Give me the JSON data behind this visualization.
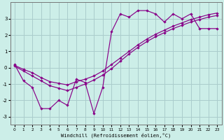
{
  "xlabel": "Windchill (Refroidissement éolien,°C)",
  "bg_color": "#cceee8",
  "grid_color": "#aacccc",
  "line_color": "#880088",
  "y_jagged": [
    0.2,
    -0.8,
    -1.2,
    -2.5,
    -2.5,
    -2.0,
    -2.3,
    -0.7,
    -0.9,
    -2.8,
    -1.2,
    2.2,
    3.3,
    3.1,
    3.5,
    3.5,
    3.3,
    2.8,
    3.3,
    3.0,
    3.3,
    2.4,
    2.4,
    2.4
  ],
  "y_diag1": [
    0.15,
    -0.1,
    -0.3,
    -0.6,
    -0.85,
    -0.95,
    -1.05,
    -0.85,
    -0.7,
    -0.5,
    -0.2,
    0.2,
    0.6,
    1.0,
    1.4,
    1.75,
    2.05,
    2.3,
    2.55,
    2.75,
    2.95,
    3.1,
    3.25,
    3.35
  ],
  "y_diag2": [
    0.1,
    -0.2,
    -0.5,
    -0.8,
    -1.1,
    -1.25,
    -1.4,
    -1.2,
    -1.0,
    -0.75,
    -0.45,
    -0.05,
    0.4,
    0.85,
    1.25,
    1.6,
    1.9,
    2.15,
    2.4,
    2.6,
    2.8,
    2.95,
    3.1,
    3.2
  ],
  "ylim": [
    -3.5,
    4.0
  ],
  "xlim": [
    -0.5,
    23.5
  ],
  "yticks": [
    -3,
    -2,
    -1,
    0,
    1,
    2,
    3
  ],
  "xticks": [
    0,
    1,
    2,
    3,
    4,
    5,
    6,
    7,
    8,
    9,
    10,
    11,
    12,
    13,
    14,
    15,
    16,
    17,
    18,
    19,
    20,
    21,
    22,
    23
  ]
}
